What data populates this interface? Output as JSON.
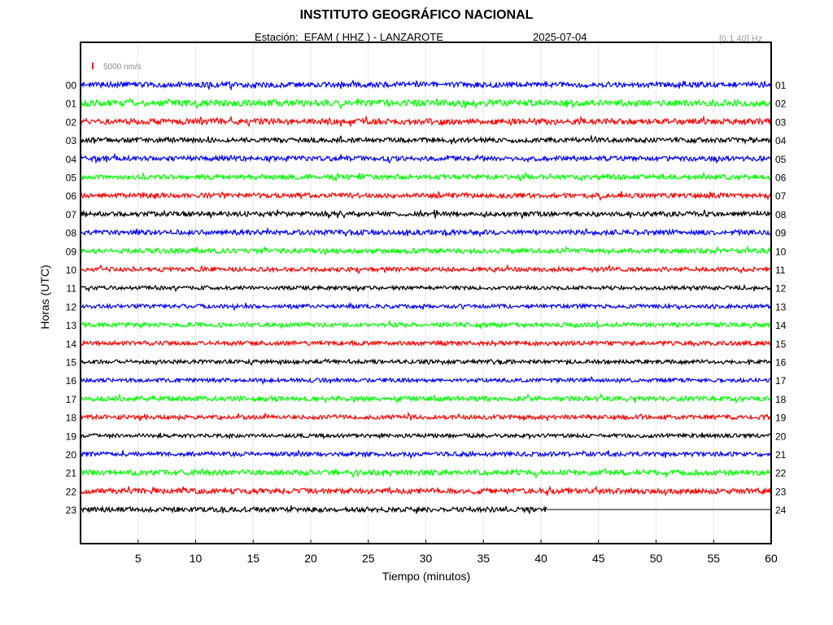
{
  "header": {
    "title": "INSTITUTO GEOGRÁFICO NACIONAL",
    "station": "Estación:  EFAM ( HHZ ) - LANZAROTE",
    "date": "2025-07-04",
    "filter": "[0.1 40] Hz"
  },
  "colors": {
    "blue": "#0000ff",
    "green": "#00ff00",
    "red": "#ff0000",
    "black": "#000000",
    "scale_marker": "#ff0000"
  },
  "chart_data": {
    "type": "line",
    "title": "INSTITUTO GEOGRÁFICO NACIONAL",
    "xlabel": "Tiempo (minutos)",
    "ylabel": "Horas (UTC)",
    "xlim": [
      0,
      60
    ],
    "x_ticks": [
      "5",
      "10",
      "15",
      "20",
      "25",
      "30",
      "35",
      "40",
      "45",
      "50",
      "55",
      "60"
    ],
    "scale_label": "5000 nm/s",
    "grid": true,
    "color_cycle": [
      "blue",
      "green",
      "red",
      "black"
    ],
    "series": [
      {
        "start_label": "00",
        "end_label": "01",
        "color": "blue",
        "amplitude": 0.55,
        "end_minute": 60
      },
      {
        "start_label": "01",
        "end_label": "02",
        "color": "green",
        "amplitude": 0.65,
        "end_minute": 60
      },
      {
        "start_label": "02",
        "end_label": "03",
        "color": "red",
        "amplitude": 0.6,
        "end_minute": 60
      },
      {
        "start_label": "03",
        "end_label": "04",
        "color": "black",
        "amplitude": 0.5,
        "end_minute": 60
      },
      {
        "start_label": "04",
        "end_label": "05",
        "color": "blue",
        "amplitude": 0.5,
        "end_minute": 60
      },
      {
        "start_label": "05",
        "end_label": "06",
        "color": "green",
        "amplitude": 0.5,
        "end_minute": 60
      },
      {
        "start_label": "06",
        "end_label": "07",
        "color": "red",
        "amplitude": 0.5,
        "end_minute": 60
      },
      {
        "start_label": "07",
        "end_label": "08",
        "color": "black",
        "amplitude": 0.5,
        "end_minute": 60
      },
      {
        "start_label": "08",
        "end_label": "09",
        "color": "blue",
        "amplitude": 0.5,
        "end_minute": 60
      },
      {
        "start_label": "09",
        "end_label": "10",
        "color": "green",
        "amplitude": 0.5,
        "end_minute": 60
      },
      {
        "start_label": "10",
        "end_label": "11",
        "color": "red",
        "amplitude": 0.45,
        "end_minute": 60
      },
      {
        "start_label": "11",
        "end_label": "12",
        "color": "black",
        "amplitude": 0.4,
        "end_minute": 60
      },
      {
        "start_label": "12",
        "end_label": "13",
        "color": "blue",
        "amplitude": 0.4,
        "end_minute": 60
      },
      {
        "start_label": "13",
        "end_label": "14",
        "color": "green",
        "amplitude": 0.45,
        "end_minute": 60
      },
      {
        "start_label": "14",
        "end_label": "15",
        "color": "red",
        "amplitude": 0.45,
        "end_minute": 60
      },
      {
        "start_label": "15",
        "end_label": "16",
        "color": "black",
        "amplitude": 0.4,
        "end_minute": 60
      },
      {
        "start_label": "16",
        "end_label": "17",
        "color": "blue",
        "amplitude": 0.4,
        "end_minute": 60
      },
      {
        "start_label": "17",
        "end_label": "18",
        "color": "green",
        "amplitude": 0.5,
        "end_minute": 60
      },
      {
        "start_label": "18",
        "end_label": "19",
        "color": "red",
        "amplitude": 0.45,
        "end_minute": 60
      },
      {
        "start_label": "19",
        "end_label": "20",
        "color": "black",
        "amplitude": 0.4,
        "end_minute": 60
      },
      {
        "start_label": "20",
        "end_label": "21",
        "color": "blue",
        "amplitude": 0.45,
        "end_minute": 60
      },
      {
        "start_label": "21",
        "end_label": "22",
        "color": "green",
        "amplitude": 0.55,
        "end_minute": 60
      },
      {
        "start_label": "22",
        "end_label": "23",
        "color": "red",
        "amplitude": 0.55,
        "end_minute": 60
      },
      {
        "start_label": "23",
        "end_label": "24",
        "color": "black",
        "amplitude": 0.5,
        "end_minute": 40.5
      }
    ]
  }
}
